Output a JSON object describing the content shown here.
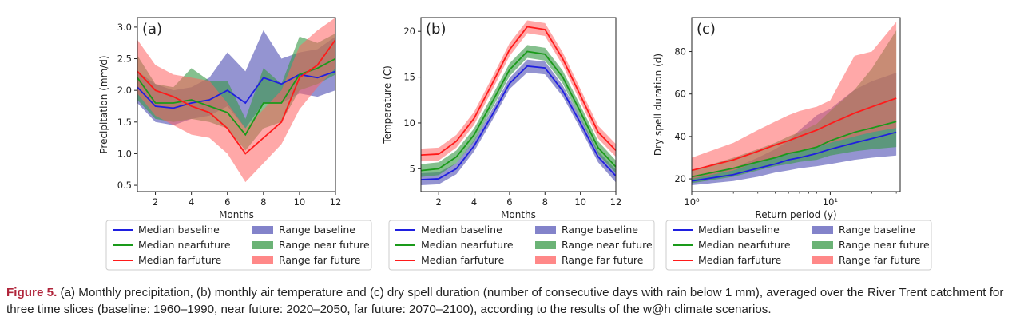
{
  "caption": {
    "label": "Figure 5.",
    "text": " (a) Monthly precipitation, (b) monthly air temperature and (c) dry spell duration (number of consecutive days with rain below 1 mm), averaged over the River Trent catchment for three time slices (baseline: 1960–1990, near future: 2020–2050, far future: 2070–2100), according to the results of the w@h climate scenarios."
  },
  "colors": {
    "baseline": "#1f1fe0",
    "near": "#1a9a1a",
    "far": "#ff1a1a",
    "baseline_band": "#5a5ab8",
    "near_band": "#3a9a48",
    "far_band": "#ff6060"
  },
  "chart_data": [
    {
      "id": "a",
      "type": "line",
      "panel_label": "(a)",
      "xlabel": "Months",
      "ylabel": "Precipitation (mm/d)",
      "xlim": [
        1,
        12
      ],
      "ylim": [
        0.4,
        3.15
      ],
      "xticks": [
        2,
        4,
        6,
        8,
        10,
        12
      ],
      "yticks": [
        0.5,
        1.0,
        1.5,
        2.0,
        2.5,
        3.0
      ],
      "ytick_labels": [
        "0.5",
        "1.0",
        "1.5",
        "2.0",
        "2.5",
        "3.0"
      ],
      "x": [
        1,
        2,
        3,
        4,
        5,
        6,
        7,
        8,
        9,
        10,
        11,
        12
      ],
      "series": [
        {
          "name": "Median baseline",
          "key": "baseline",
          "values": [
            2.05,
            1.75,
            1.72,
            1.8,
            1.85,
            2.0,
            1.8,
            2.2,
            2.1,
            2.25,
            2.2,
            2.3
          ]
        },
        {
          "name": "Median nearfuture",
          "key": "near",
          "values": [
            2.2,
            1.8,
            1.8,
            1.85,
            1.75,
            1.65,
            1.3,
            1.8,
            1.8,
            2.25,
            2.35,
            2.5
          ]
        },
        {
          "name": "Median farfuture",
          "key": "far",
          "values": [
            2.3,
            2.0,
            1.9,
            1.75,
            1.65,
            1.4,
            1.0,
            1.25,
            1.5,
            2.2,
            2.4,
            2.8
          ]
        }
      ],
      "bands": [
        {
          "name": "Range baseline",
          "key": "baseline",
          "low": [
            1.8,
            1.5,
            1.45,
            1.55,
            1.6,
            1.75,
            1.4,
            1.8,
            1.8,
            1.95,
            1.9,
            2.0
          ],
          "high": [
            2.3,
            2.1,
            2.0,
            2.05,
            2.2,
            2.6,
            2.3,
            2.95,
            2.5,
            2.6,
            2.65,
            2.85
          ]
        },
        {
          "name": "Range near future",
          "key": "near",
          "low": [
            1.85,
            1.55,
            1.5,
            1.55,
            1.5,
            1.4,
            1.05,
            1.4,
            1.5,
            2.0,
            2.1,
            2.25
          ],
          "high": [
            2.55,
            2.1,
            2.05,
            2.35,
            2.15,
            2.15,
            1.55,
            2.35,
            2.1,
            2.85,
            2.75,
            2.9
          ]
        },
        {
          "name": "Range far future",
          "key": "far",
          "low": [
            1.95,
            1.6,
            1.45,
            1.3,
            1.25,
            1.0,
            0.55,
            0.85,
            1.15,
            1.7,
            2.05,
            2.35
          ],
          "high": [
            2.8,
            2.4,
            2.25,
            2.2,
            2.15,
            1.8,
            1.4,
            1.7,
            2.0,
            2.7,
            2.95,
            3.15
          ]
        }
      ]
    },
    {
      "id": "b",
      "type": "line",
      "panel_label": "(b)",
      "xlabel": "Months",
      "ylabel": "Temperature (C)",
      "xlim": [
        1,
        12
      ],
      "ylim": [
        2.5,
        21.5
      ],
      "xticks": [
        2,
        4,
        6,
        8,
        10,
        12
      ],
      "yticks": [
        5,
        10,
        15,
        20
      ],
      "ytick_labels": [
        "5",
        "10",
        "15",
        "20"
      ],
      "x": [
        1,
        2,
        3,
        4,
        5,
        6,
        7,
        8,
        9,
        10,
        11,
        12
      ],
      "series": [
        {
          "name": "Median baseline",
          "key": "baseline",
          "values": [
            3.8,
            3.9,
            5.0,
            7.5,
            10.8,
            14.3,
            16.2,
            16.0,
            13.5,
            10.0,
            6.3,
            4.2
          ]
        },
        {
          "name": "Median nearfuture",
          "key": "near",
          "values": [
            4.8,
            5.0,
            6.3,
            8.7,
            12.2,
            15.8,
            17.8,
            17.5,
            15.0,
            11.2,
            7.3,
            5.2
          ]
        },
        {
          "name": "Median farfuture",
          "key": "far",
          "values": [
            6.5,
            6.6,
            8.0,
            10.5,
            14.2,
            18.0,
            20.5,
            20.2,
            17.0,
            13.0,
            9.0,
            7.0
          ]
        }
      ],
      "bands": [
        {
          "name": "Range baseline",
          "key": "baseline",
          "low": [
            3.2,
            3.3,
            4.4,
            6.9,
            10.2,
            13.7,
            15.5,
            15.3,
            12.9,
            9.4,
            5.7,
            3.5
          ],
          "high": [
            4.5,
            4.6,
            5.6,
            8.1,
            11.4,
            14.9,
            16.9,
            16.7,
            14.1,
            10.6,
            6.9,
            4.9
          ]
        },
        {
          "name": "Range near future",
          "key": "near",
          "low": [
            4.1,
            4.3,
            5.6,
            8.0,
            11.5,
            15.1,
            17.1,
            16.8,
            14.3,
            10.5,
            6.6,
            4.5
          ],
          "high": [
            5.5,
            5.7,
            7.0,
            9.4,
            12.9,
            16.5,
            18.5,
            18.2,
            15.7,
            11.9,
            8.0,
            5.9
          ]
        },
        {
          "name": "Range far future",
          "key": "far",
          "low": [
            5.8,
            5.9,
            7.3,
            9.8,
            13.5,
            17.3,
            19.8,
            19.5,
            16.3,
            12.3,
            8.3,
            6.3
          ],
          "high": [
            7.2,
            7.3,
            8.7,
            11.2,
            14.9,
            18.7,
            21.2,
            20.9,
            17.7,
            13.7,
            9.7,
            7.7
          ]
        }
      ]
    },
    {
      "id": "c",
      "type": "line",
      "panel_label": "(c)",
      "xlabel": "Return period (y)",
      "ylabel": "Dry spell duration (d)",
      "xscale": "log",
      "xlim": [
        1,
        32
      ],
      "ylim": [
        14,
        96
      ],
      "xticks": [
        1,
        10
      ],
      "xtick_labels": [
        "10⁰",
        "10¹"
      ],
      "yticks": [
        20,
        40,
        60,
        80
      ],
      "ytick_labels": [
        "20",
        "40",
        "60",
        "80"
      ],
      "x": [
        1,
        2,
        3,
        4,
        5,
        6,
        8,
        10,
        15,
        20,
        30
      ],
      "series": [
        {
          "name": "Median baseline",
          "key": "baseline",
          "values": [
            19,
            22,
            25,
            27,
            29,
            30,
            32,
            34,
            37,
            39,
            42
          ]
        },
        {
          "name": "Median nearfuture",
          "key": "near",
          "values": [
            21,
            25,
            28,
            30,
            32,
            33,
            35,
            38,
            42,
            44,
            47
          ]
        },
        {
          "name": "Median farfuture",
          "key": "far",
          "values": [
            24,
            29,
            33,
            36,
            38,
            40,
            43,
            46,
            51,
            54,
            58
          ]
        }
      ],
      "bands": [
        {
          "name": "Range baseline",
          "key": "baseline",
          "low": [
            17,
            19,
            21,
            23,
            24,
            25,
            26,
            27,
            29,
            30,
            31
          ],
          "high": [
            21,
            25,
            30,
            34,
            38,
            43,
            50,
            53,
            62,
            66,
            70
          ]
        },
        {
          "name": "Range near future",
          "key": "near",
          "low": [
            18,
            21,
            24,
            26,
            27,
            28,
            29,
            31,
            33,
            34,
            35
          ],
          "high": [
            24,
            30,
            34,
            37,
            40,
            42,
            46,
            52,
            62,
            72,
            90
          ]
        },
        {
          "name": "Range far future",
          "key": "far",
          "low": [
            20,
            24,
            28,
            30,
            32,
            33,
            35,
            37,
            40,
            42,
            44
          ],
          "high": [
            30,
            37,
            43,
            47,
            50,
            52,
            54,
            57,
            78,
            80,
            94
          ]
        }
      ]
    }
  ],
  "legend_rows": [
    {
      "line": "Median baseline",
      "line_key": "baseline",
      "patch": "Range baseline",
      "patch_key": "baseline"
    },
    {
      "line": "Median nearfuture",
      "line_key": "near",
      "patch": "Range near future",
      "patch_key": "near"
    },
    {
      "line": "Median farfuture",
      "line_key": "far",
      "patch": "Range far future",
      "patch_key": "far"
    }
  ]
}
